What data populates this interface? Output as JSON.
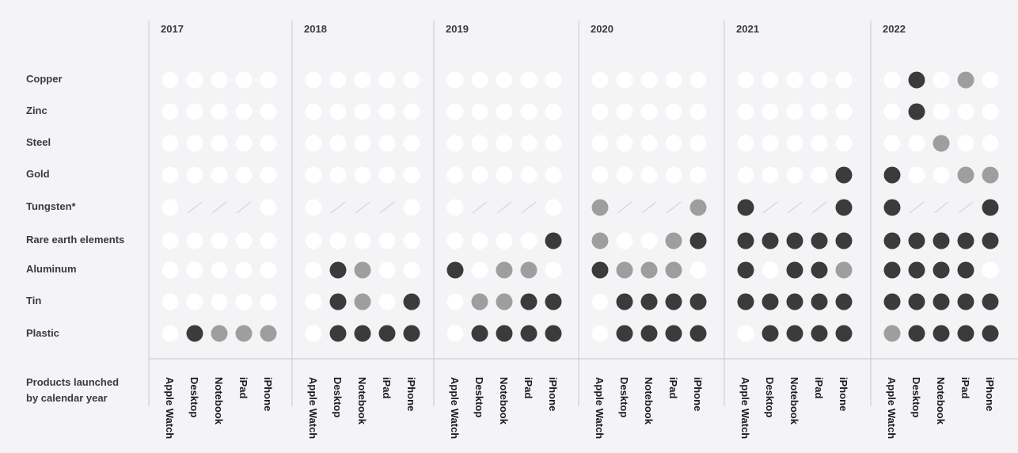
{
  "chart_data": {
    "type": "table",
    "years": [
      "2017",
      "2018",
      "2019",
      "2020",
      "2021",
      "2022"
    ],
    "products": [
      "Apple Watch",
      "Desktop",
      "Notebook",
      "iPad",
      "iPhone"
    ],
    "materials": [
      "Copper",
      "Zinc",
      "Steel",
      "Gold",
      "Tungsten*",
      "Rare earth elements",
      "Aluminum",
      "Tin",
      "Plastic"
    ],
    "footer_label_lines": [
      "Products launched",
      "by calendar year"
    ],
    "legend_codes": {
      "0": "white",
      "1": "gray",
      "2": "dark",
      "-1": "not applicable (slash)"
    },
    "colors": {
      "background": "#f4f4f6",
      "white": "#ffffff",
      "gray": "#9e9e9e",
      "dark": "#3b3b3b",
      "divider": "#c8c8cc",
      "slash": "#d6d6da"
    },
    "values": {
      "2017": {
        "Copper": [
          0,
          0,
          0,
          0,
          0
        ],
        "Zinc": [
          0,
          0,
          0,
          0,
          0
        ],
        "Steel": [
          0,
          0,
          0,
          0,
          0
        ],
        "Gold": [
          0,
          0,
          0,
          0,
          0
        ],
        "Tungsten*": [
          0,
          -1,
          -1,
          -1,
          0
        ],
        "Rare earth elements": [
          0,
          0,
          0,
          0,
          0
        ],
        "Aluminum": [
          0,
          0,
          0,
          0,
          0
        ],
        "Tin": [
          0,
          0,
          0,
          0,
          0
        ],
        "Plastic": [
          0,
          2,
          1,
          1,
          1
        ]
      },
      "2018": {
        "Copper": [
          0,
          0,
          0,
          0,
          0
        ],
        "Zinc": [
          0,
          0,
          0,
          0,
          0
        ],
        "Steel": [
          0,
          0,
          0,
          0,
          0
        ],
        "Gold": [
          0,
          0,
          0,
          0,
          0
        ],
        "Tungsten*": [
          0,
          -1,
          -1,
          -1,
          0
        ],
        "Rare earth elements": [
          0,
          0,
          0,
          0,
          0
        ],
        "Aluminum": [
          0,
          2,
          1,
          0,
          0
        ],
        "Tin": [
          0,
          2,
          1,
          0,
          2
        ],
        "Plastic": [
          0,
          2,
          2,
          2,
          2
        ]
      },
      "2019": {
        "Copper": [
          0,
          0,
          0,
          0,
          0
        ],
        "Zinc": [
          0,
          0,
          0,
          0,
          0
        ],
        "Steel": [
          0,
          0,
          0,
          0,
          0
        ],
        "Gold": [
          0,
          0,
          0,
          0,
          0
        ],
        "Tungsten*": [
          0,
          -1,
          -1,
          -1,
          0
        ],
        "Rare earth elements": [
          0,
          0,
          0,
          0,
          2
        ],
        "Aluminum": [
          2,
          0,
          1,
          1,
          0
        ],
        "Tin": [
          0,
          1,
          1,
          2,
          2
        ],
        "Plastic": [
          0,
          2,
          2,
          2,
          2
        ]
      },
      "2020": {
        "Copper": [
          0,
          0,
          0,
          0,
          0
        ],
        "Zinc": [
          0,
          0,
          0,
          0,
          0
        ],
        "Steel": [
          0,
          0,
          0,
          0,
          0
        ],
        "Gold": [
          0,
          0,
          0,
          0,
          0
        ],
        "Tungsten*": [
          1,
          -1,
          -1,
          -1,
          1
        ],
        "Rare earth elements": [
          1,
          0,
          0,
          1,
          2
        ],
        "Aluminum": [
          2,
          1,
          1,
          1,
          0
        ],
        "Tin": [
          0,
          2,
          2,
          2,
          2
        ],
        "Plastic": [
          0,
          2,
          2,
          2,
          2
        ]
      },
      "2021": {
        "Copper": [
          0,
          0,
          0,
          0,
          0
        ],
        "Zinc": [
          0,
          0,
          0,
          0,
          0
        ],
        "Steel": [
          0,
          0,
          0,
          0,
          0
        ],
        "Gold": [
          0,
          0,
          0,
          0,
          2
        ],
        "Tungsten*": [
          2,
          -1,
          -1,
          -1,
          2
        ],
        "Rare earth elements": [
          2,
          2,
          2,
          2,
          2
        ],
        "Aluminum": [
          2,
          0,
          2,
          2,
          1
        ],
        "Tin": [
          2,
          2,
          2,
          2,
          2
        ],
        "Plastic": [
          0,
          2,
          2,
          2,
          2
        ]
      },
      "2022": {
        "Copper": [
          0,
          2,
          0,
          1,
          0
        ],
        "Zinc": [
          0,
          2,
          0,
          0,
          0
        ],
        "Steel": [
          0,
          0,
          1,
          0,
          0
        ],
        "Gold": [
          2,
          0,
          0,
          1,
          1
        ],
        "Tungsten*": [
          2,
          -1,
          -1,
          -1,
          2
        ],
        "Rare earth elements": [
          2,
          2,
          2,
          2,
          2
        ],
        "Aluminum": [
          2,
          2,
          2,
          2,
          0
        ],
        "Tin": [
          2,
          2,
          2,
          2,
          2
        ],
        "Plastic": [
          1,
          2,
          2,
          2,
          2
        ]
      }
    }
  }
}
